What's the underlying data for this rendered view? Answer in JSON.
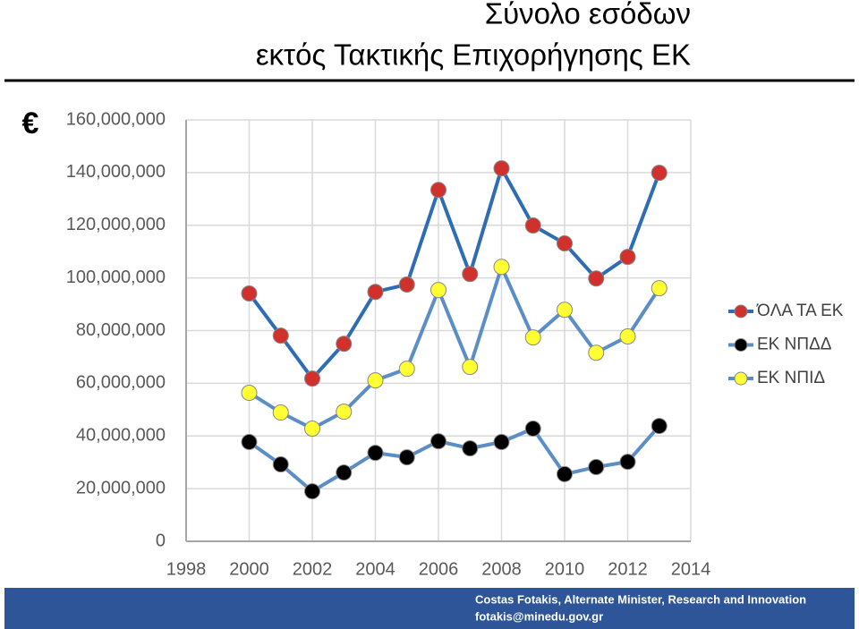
{
  "chart_data": {
    "type": "line",
    "title": "Σύνολο εσόδων",
    "subtitle": "εκτός Τακτικής Επιχορήγησης ΕΚ",
    "ylabel": "€",
    "x": [
      2000,
      2001,
      2002,
      2003,
      2004,
      2005,
      2006,
      2007,
      2008,
      2009,
      2010,
      2011,
      2012,
      2013
    ],
    "series": [
      {
        "name": "ΌΛΑ ΤΑ ΕΚ",
        "color": "#d0312d",
        "line_color": "#2e6db4",
        "values": [
          94100000,
          78100000,
          61800000,
          75000000,
          94700000,
          97500000,
          133400000,
          101500000,
          141600000,
          119900000,
          113100000,
          99800000,
          108000000,
          139900000
        ]
      },
      {
        "name": "ΕΚ ΝΠΔΔ",
        "color": "#000000",
        "line_color": "#5b8ec7",
        "values": [
          37700000,
          29200000,
          19000000,
          26100000,
          33600000,
          31900000,
          38000000,
          35300000,
          37700000,
          42800000,
          25500000,
          28200000,
          30200000,
          43800000
        ]
      },
      {
        "name": "ΕΚ ΝΠΙΔ",
        "color": "#ffff33",
        "line_color": "#5b8ec7",
        "values": [
          56400000,
          48900000,
          42800000,
          49200000,
          61100000,
          65500000,
          95400000,
          66200000,
          104200000,
          77400000,
          87900000,
          71600000,
          77800000,
          96100000
        ]
      }
    ],
    "xlim": [
      1998,
      2014
    ],
    "xticks": [
      1998,
      2000,
      2002,
      2004,
      2006,
      2008,
      2010,
      2012,
      2014
    ],
    "ylim": [
      0,
      160000000
    ],
    "yticks": [
      0,
      {
        "value": 20000000,
        "label": "20,000,000"
      },
      {
        "value": 40000000,
        "label": "40,000,000"
      },
      {
        "value": 60000000,
        "label": "60,000,000"
      },
      {
        "value": 80000000,
        "label": "80,000,000"
      },
      {
        "value": 100000000,
        "label": "100,000,000"
      },
      {
        "value": 120000000,
        "label": "120,000,000"
      },
      {
        "value": 140000000,
        "label": "140,000,000"
      },
      {
        "value": 160000000,
        "label": "160,000,000"
      }
    ],
    "grid": true,
    "legend": "right"
  },
  "footer": {
    "author": "Costas Fotakis, Alternate Minister, Research and Innovation",
    "email": "fotakis@minedu.gov.gr"
  }
}
